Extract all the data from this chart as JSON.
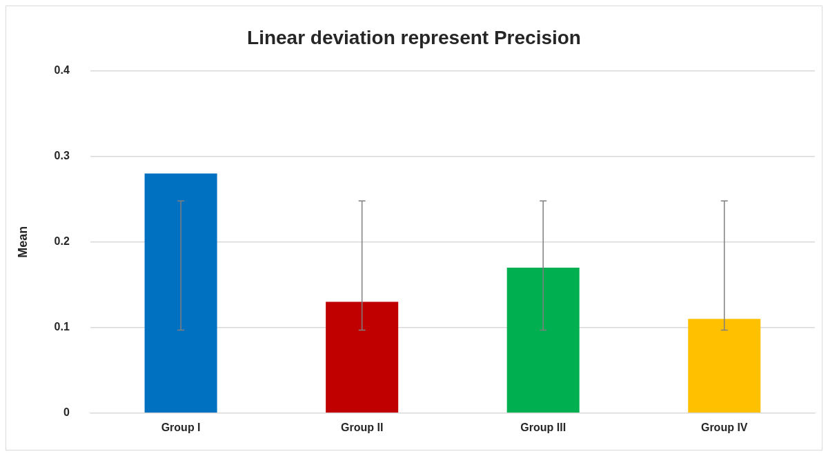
{
  "chart_data": {
    "type": "bar",
    "title": "Linear deviation represent Precision",
    "ylabel": "Mean",
    "categories": [
      "Group I",
      "Group II",
      "Group III",
      "Group IV"
    ],
    "values": [
      0.28,
      0.13,
      0.17,
      0.11
    ],
    "colors": [
      "#0070c0",
      "#c00000",
      "#00b050",
      "#ffc000"
    ],
    "errors": [
      [
        0.097,
        0.248
      ],
      [
        0.097,
        0.248
      ],
      [
        0.097,
        0.248
      ],
      [
        0.097,
        0.248
      ]
    ],
    "ylim": [
      0,
      0.4
    ],
    "yticks": [
      0,
      0.1,
      0.2,
      0.3,
      0.4
    ],
    "grid": "y",
    "legend": false
  }
}
